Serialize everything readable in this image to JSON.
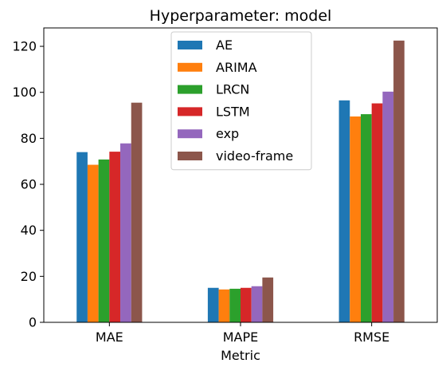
{
  "chart_data": {
    "type": "bar",
    "title": "Hyperparameter: model",
    "xlabel": "Metric",
    "ylabel": "",
    "categories": [
      "MAE",
      "MAPE",
      "RMSE"
    ],
    "ylim": [
      0,
      128
    ],
    "yticks": [
      0,
      20,
      40,
      60,
      80,
      100,
      120
    ],
    "grid": false,
    "legend_position": "top-center",
    "series": [
      {
        "name": "AE",
        "color": "#1f77b4",
        "values": [
          74.0,
          15.0,
          96.5
        ]
      },
      {
        "name": "ARIMA",
        "color": "#ff7f0e",
        "values": [
          68.5,
          14.3,
          89.5
        ]
      },
      {
        "name": "LRCN",
        "color": "#2ca02c",
        "values": [
          70.8,
          14.6,
          90.5
        ]
      },
      {
        "name": "LSTM",
        "color": "#d62728",
        "values": [
          74.2,
          15.0,
          95.2
        ]
      },
      {
        "name": "exp",
        "color": "#9467bd",
        "values": [
          77.8,
          15.7,
          100.3
        ]
      },
      {
        "name": "video-frame",
        "color": "#8c564b",
        "values": [
          95.5,
          19.5,
          122.5
        ]
      }
    ]
  }
}
